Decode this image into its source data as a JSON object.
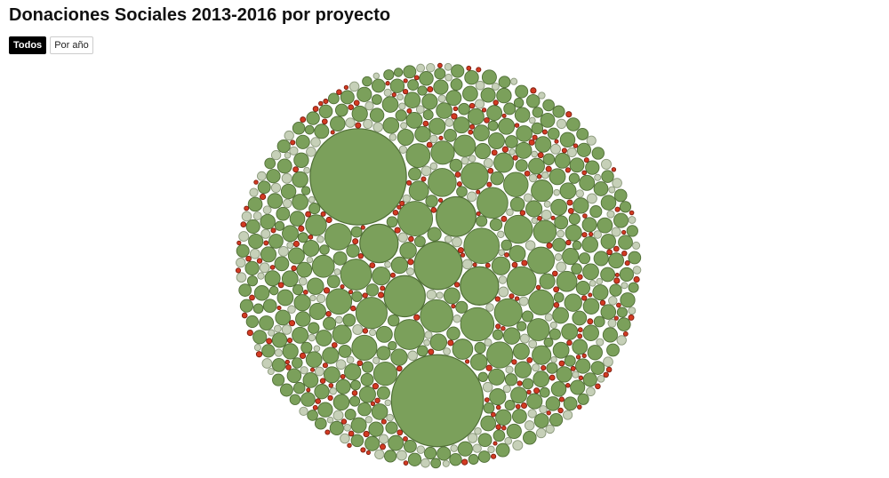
{
  "page": {
    "title": "Donaciones Sociales 2013-2016 por proyecto"
  },
  "toggles": [
    {
      "label": "Todos",
      "active": true
    },
    {
      "label": "Por año",
      "active": false
    }
  ],
  "colors": {
    "primary_fill": "#7ba05b",
    "primary_stroke": "#4f6e35",
    "secondary_fill": "#c6d0b8",
    "secondary_stroke": "#8c9a7c",
    "tertiary_fill": "#d33a22",
    "tertiary_stroke": "#7a1f10"
  },
  "chart_data": {
    "type": "bubble",
    "grid": false,
    "legend": "none",
    "large_values": [
      340,
      310,
      85,
      62,
      58,
      54,
      54,
      46,
      44,
      41,
      39,
      36,
      35,
      35,
      33,
      31,
      29,
      29,
      28,
      27,
      26,
      26,
      25,
      24,
      23,
      23,
      22,
      21,
      20,
      20,
      19,
      18,
      18,
      17,
      17,
      16,
      15,
      15,
      14,
      14,
      13,
      13,
      12,
      12,
      11
    ],
    "value_ranges": {
      "green_count": 330,
      "green_min": 2.6,
      "green_max": 10,
      "light_count": 260,
      "light_min": 1.2,
      "light_max": 3.6,
      "red_count": 230,
      "red_min": 0.5,
      "red_max": 1.2
    }
  }
}
